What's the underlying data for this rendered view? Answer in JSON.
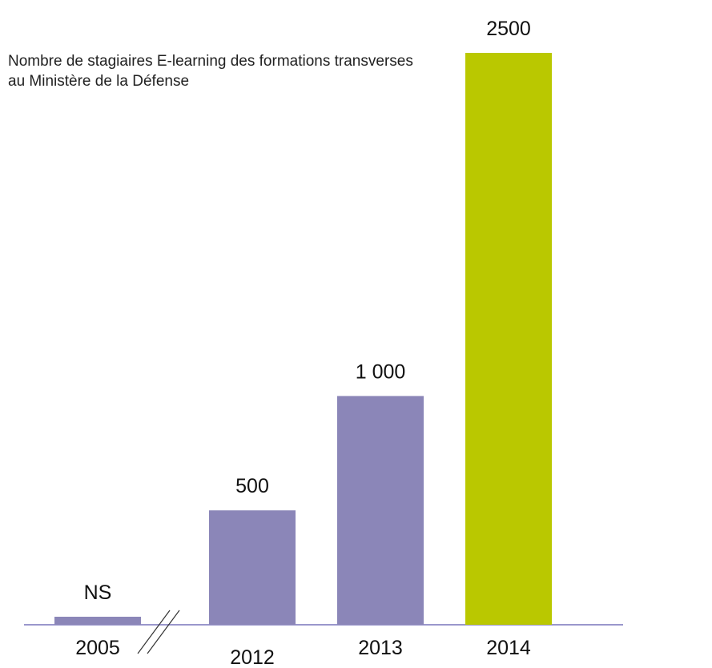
{
  "chart_data": {
    "type": "bar",
    "title": "Nombre de stagiaires E-learning des formations transverses au Ministère de la Défense",
    "categories": [
      "2005",
      "2012",
      "2013",
      "2014"
    ],
    "values": [
      35,
      500,
      1000,
      2500
    ],
    "value_labels": [
      "NS",
      "500",
      "1 000",
      "2500"
    ],
    "colors": [
      "#8b86b8",
      "#8b86b8",
      "#8b86b8",
      "#bac800"
    ],
    "ylim": [
      0,
      2500
    ]
  }
}
